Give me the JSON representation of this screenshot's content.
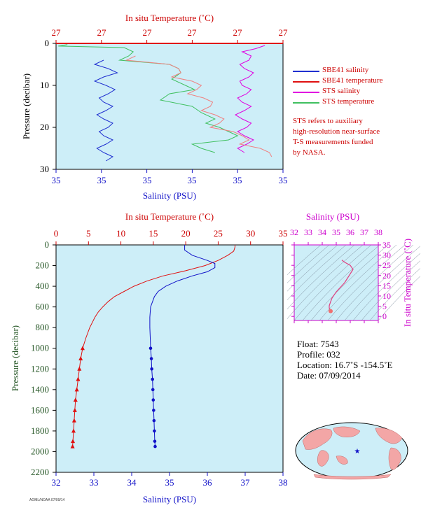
{
  "colors": {
    "plot_bg": "#cdeef8",
    "temp_red": "#cc0000",
    "salinity_blue": "#1010c8",
    "sbe_salinity": "#2030d0",
    "sbe_temperature": "#e01010",
    "sts_salinity": "#e000e0",
    "sts_temperature": "#40c060",
    "sts_temp_pink": "#f08080",
    "pressure_green": "#2a5a2a",
    "ts_magenta": "#cc00cc"
  },
  "legend": {
    "items": [
      {
        "label": "SBE41 salinity",
        "color": "#2030d0",
        "icon": "line-swatch"
      },
      {
        "label": "SBE41 temperature",
        "color": "#e01010",
        "icon": "line-swatch"
      },
      {
        "label": "STS salinity",
        "color": "#e000e0",
        "icon": "line-swatch"
      },
      {
        "label": "STS temperature",
        "color": "#40c060",
        "icon": "line-swatch"
      }
    ],
    "note_lines": [
      "STS refers to auxiliary",
      "high-resolution near-surface",
      "T-S measurements funded",
      "by NASA."
    ]
  },
  "info": {
    "float": "Float:  7543",
    "profile": "Profile:  032",
    "location": "Location:  16.7˚S  -154.5˚E",
    "date": "Date:  07/09/2014"
  },
  "fig_id": "AOML/NOAA 07/09/14",
  "chart_data": [
    {
      "type": "line",
      "name": "near-surface T-S",
      "top_axis_title": "In situ Temperature (˚C)",
      "top_tick_labels": [
        "27",
        "27",
        "27",
        "27",
        "27",
        "27"
      ],
      "bottom_axis_title": "Salinity (PSU)",
      "bottom_tick_labels": [
        "35",
        "35",
        "35",
        "35",
        "35",
        "35"
      ],
      "ylabel": "Pressure (decibar)",
      "ylim": [
        0,
        30
      ],
      "y_ticks": [
        0,
        10,
        20,
        30
      ],
      "y_tick_labels": [
        "0",
        "10",
        "20",
        "30"
      ],
      "series": [
        {
          "name": "SBE41 salinity",
          "color": "#2030d0",
          "pressure": [
            4,
            6,
            8,
            10,
            12,
            14,
            16,
            18,
            20,
            22,
            24,
            26,
            28
          ],
          "x_frac": [
            0.21,
            0.23,
            0.21,
            0.22,
            0.23,
            0.21,
            0.22,
            0.21,
            0.23,
            0.21,
            0.22,
            0.21,
            0.22
          ]
        },
        {
          "name": "SBE41 temperature",
          "color": "#e01010",
          "pressure": [
            0
          ],
          "x_frac": [
            0.99
          ]
        },
        {
          "name": "STS salinity",
          "color": "#e000e0",
          "pressure": [
            0.5,
            2,
            4,
            6,
            8,
            10,
            12,
            14,
            16,
            18,
            20,
            22,
            24,
            26
          ],
          "x_frac": [
            0.92,
            0.82,
            0.85,
            0.83,
            0.85,
            0.82,
            0.84,
            0.82,
            0.83,
            0.82,
            0.84,
            0.83,
            0.84,
            0.83
          ]
        },
        {
          "name": "STS temperature",
          "color": "#40c060",
          "pressure": [
            0.3,
            1,
            3,
            5,
            7,
            10,
            12,
            15,
            18,
            20,
            22,
            24,
            26
          ],
          "x_frac": [
            0.05,
            0.3,
            0.32,
            0.5,
            0.55,
            0.57,
            0.5,
            0.6,
            0.7,
            0.72,
            0.8,
            0.6,
            0.7
          ]
        },
        {
          "name": "STS temperature (pink)",
          "color": "#f08080",
          "pressure": [
            3,
            5,
            7,
            9,
            11,
            13,
            15,
            17,
            19,
            21,
            23,
            25,
            27
          ],
          "x_frac": [
            0.35,
            0.5,
            0.55,
            0.6,
            0.62,
            0.65,
            0.68,
            0.7,
            0.72,
            0.78,
            0.85,
            0.9,
            0.95
          ]
        }
      ]
    },
    {
      "type": "line",
      "name": "full-depth profile",
      "top_axis_title": "In situ Temperature (˚C)",
      "top_ticks": [
        0,
        5,
        10,
        15,
        20,
        25,
        30,
        35
      ],
      "top_tick_labels": [
        "0",
        "5",
        "10",
        "15",
        "20",
        "25",
        "30",
        "35"
      ],
      "bottom_axis_title": "Salinity (PSU)",
      "bottom_ticks": [
        32,
        33,
        34,
        35,
        36,
        37,
        38
      ],
      "bottom_tick_labels": [
        "32",
        "33",
        "34",
        "35",
        "36",
        "37",
        "38"
      ],
      "ylabel": "Pressure (decibar)",
      "ylim": [
        0,
        2200
      ],
      "y_ticks": [
        0,
        200,
        400,
        600,
        800,
        1000,
        1200,
        1400,
        1600,
        1800,
        2000,
        2200
      ],
      "y_tick_labels": [
        "0",
        "200",
        "400",
        "600",
        "800",
        "1000",
        "1200",
        "1400",
        "1600",
        "1800",
        "2000",
        "2200"
      ],
      "temperature": {
        "pressure": [
          0,
          20,
          60,
          100,
          150,
          200,
          250,
          300,
          350,
          400,
          450,
          500,
          550,
          600,
          650,
          700,
          800,
          900,
          1000,
          1100,
          1200,
          1300,
          1400,
          1500,
          1600,
          1700,
          1800,
          1900,
          1950
        ],
        "values": [
          27.6,
          27.6,
          27.4,
          26.5,
          25.0,
          23.0,
          20.0,
          16.5,
          14.0,
          12.0,
          10.5,
          9.0,
          8.0,
          7.2,
          6.5,
          6.0,
          5.2,
          4.6,
          4.1,
          3.8,
          3.6,
          3.4,
          3.2,
          3.0,
          2.9,
          2.8,
          2.7,
          2.6,
          2.55
        ]
      },
      "salinity": {
        "pressure": [
          0,
          50,
          100,
          150,
          180,
          220,
          260,
          300,
          350,
          400,
          450,
          500,
          600,
          700,
          800,
          900,
          1000,
          1100,
          1200,
          1300,
          1400,
          1500,
          1600,
          1700,
          1800,
          1900,
          1950
        ],
        "values": [
          35.4,
          35.4,
          35.6,
          36.0,
          36.2,
          36.2,
          36.0,
          35.6,
          35.2,
          34.9,
          34.7,
          34.6,
          34.5,
          34.48,
          34.48,
          34.49,
          34.5,
          34.52,
          34.53,
          34.55,
          34.56,
          34.57,
          34.58,
          34.59,
          34.6,
          34.61,
          34.62
        ]
      }
    },
    {
      "type": "scatter",
      "name": "T-S diagram",
      "top_axis_title": "Salinity (PSU)",
      "top_ticks": [
        32,
        33,
        34,
        35,
        36,
        37,
        38
      ],
      "top_tick_labels": [
        "32",
        "33",
        "34",
        "35",
        "36",
        "37",
        "38"
      ],
      "right_axis_title": "In situ Temperature (˚C)",
      "right_ticks": [
        0,
        5,
        10,
        15,
        20,
        25,
        30,
        35
      ],
      "right_tick_labels": [
        "0",
        "5",
        "10",
        "15",
        "20",
        "25",
        "30",
        "35"
      ],
      "xlim": [
        32,
        38
      ],
      "ylim": [
        -2,
        35
      ],
      "points": {
        "salinity": [
          35.4,
          35.6,
          36.0,
          36.2,
          35.6,
          35.0,
          34.7,
          34.6,
          34.5,
          34.5,
          34.6
        ],
        "temperature": [
          27.6,
          26.5,
          25.0,
          23.0,
          16.5,
          12.0,
          9.0,
          7.2,
          5.2,
          4.1,
          2.6
        ]
      }
    },
    {
      "type": "map",
      "name": "float location",
      "location": {
        "lat": -16.7,
        "lon": -154.5
      }
    }
  ]
}
